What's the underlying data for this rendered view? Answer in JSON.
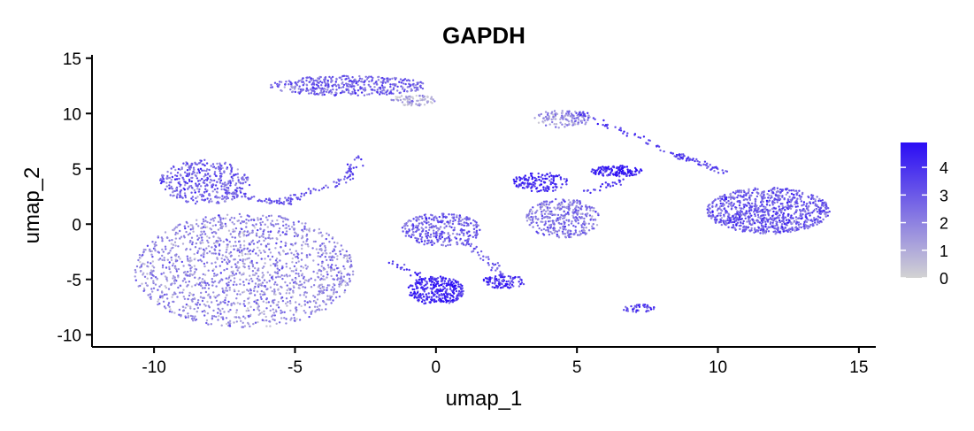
{
  "chart_data": {
    "type": "scatter",
    "title": "GAPDH",
    "xlabel": "umap_1",
    "ylabel": "umap_2",
    "xlim": [
      -12.2,
      15.6
    ],
    "ylim": [
      -11.1,
      15.3
    ],
    "xticks": [
      -10,
      -5,
      0,
      5,
      10,
      15
    ],
    "yticks": [
      -10,
      -5,
      0,
      5,
      10,
      15
    ],
    "grid": false,
    "legend_position": "right",
    "color_scale": {
      "low_color": "#d3d3d3",
      "high_color": "#2a0cf5",
      "min": 0,
      "max": 4.9,
      "ticks": [
        0,
        1,
        2,
        3,
        4
      ]
    },
    "clusters": [
      {
        "cx": -6.8,
        "cy": -4.2,
        "rx": 3.9,
        "ry": 5.2,
        "n": 1500,
        "expr": 1.9,
        "shape": "blob"
      },
      {
        "cx": -8.2,
        "cy": 3.8,
        "rx": 1.6,
        "ry": 2.0,
        "n": 380,
        "expr": 2.8,
        "shape": "blob"
      },
      {
        "cx": -3.1,
        "cy": 12.5,
        "rx": 2.8,
        "ry": 0.9,
        "n": 420,
        "expr": 2.8,
        "shape": "blob"
      },
      {
        "cx": -0.8,
        "cy": 11.2,
        "rx": 0.8,
        "ry": 0.5,
        "n": 80,
        "expr": 1.0,
        "shape": "blob"
      },
      {
        "cx": 0.0,
        "cy": -6.0,
        "rx": 1.0,
        "ry": 1.3,
        "n": 320,
        "expr": 4.3,
        "shape": "blob"
      },
      {
        "cx": 0.2,
        "cy": -0.5,
        "rx": 1.4,
        "ry": 1.5,
        "n": 320,
        "expr": 2.9,
        "shape": "blob"
      },
      {
        "cx": 2.4,
        "cy": -5.2,
        "rx": 0.8,
        "ry": 0.6,
        "n": 90,
        "expr": 4.1,
        "shape": "blob"
      },
      {
        "cx": 4.5,
        "cy": 0.5,
        "rx": 1.3,
        "ry": 1.8,
        "n": 360,
        "expr": 2.4,
        "shape": "blob"
      },
      {
        "cx": 3.7,
        "cy": 3.8,
        "rx": 1.0,
        "ry": 0.9,
        "n": 140,
        "expr": 4.0,
        "shape": "blob"
      },
      {
        "cx": 6.4,
        "cy": 4.8,
        "rx": 0.9,
        "ry": 0.5,
        "n": 130,
        "expr": 4.5,
        "shape": "blob"
      },
      {
        "cx": 4.5,
        "cy": 9.5,
        "rx": 1.0,
        "ry": 0.8,
        "n": 130,
        "expr": 1.8,
        "shape": "blob"
      },
      {
        "cx": 11.8,
        "cy": 1.2,
        "rx": 2.2,
        "ry": 2.1,
        "n": 900,
        "expr": 3.0,
        "shape": "blob"
      },
      {
        "cx": 7.2,
        "cy": -7.6,
        "rx": 0.6,
        "ry": 0.35,
        "n": 45,
        "expr": 3.6,
        "shape": "blob"
      }
    ],
    "bridges": [
      {
        "x1": -7.5,
        "y1": 2.8,
        "x2": -5.2,
        "y2": 1.8,
        "n": 60,
        "expr": 3.2
      },
      {
        "x1": -5.5,
        "y1": 2.0,
        "x2": -3.2,
        "y2": 4.0,
        "n": 45,
        "expr": 3.2
      },
      {
        "x1": -3.2,
        "y1": 4.0,
        "x2": -2.8,
        "y2": 6.0,
        "n": 30,
        "expr": 3.5
      },
      {
        "x1": 5.0,
        "y1": 10.2,
        "x2": 8.8,
        "y2": 6.0,
        "n": 50,
        "expr": 3.8
      },
      {
        "x1": 8.5,
        "y1": 6.3,
        "x2": 10.2,
        "y2": 4.8,
        "n": 60,
        "expr": 3.4
      },
      {
        "x1": 5.0,
        "y1": 2.8,
        "x2": 6.8,
        "y2": 4.0,
        "n": 25,
        "expr": 3.8
      },
      {
        "x1": -1.5,
        "y1": -3.5,
        "x2": -0.5,
        "y2": -4.8,
        "n": 20,
        "expr": 3.8
      },
      {
        "x1": 1.0,
        "y1": -1.5,
        "x2": 2.5,
        "y2": -4.8,
        "n": 40,
        "expr": 3.0
      }
    ]
  }
}
